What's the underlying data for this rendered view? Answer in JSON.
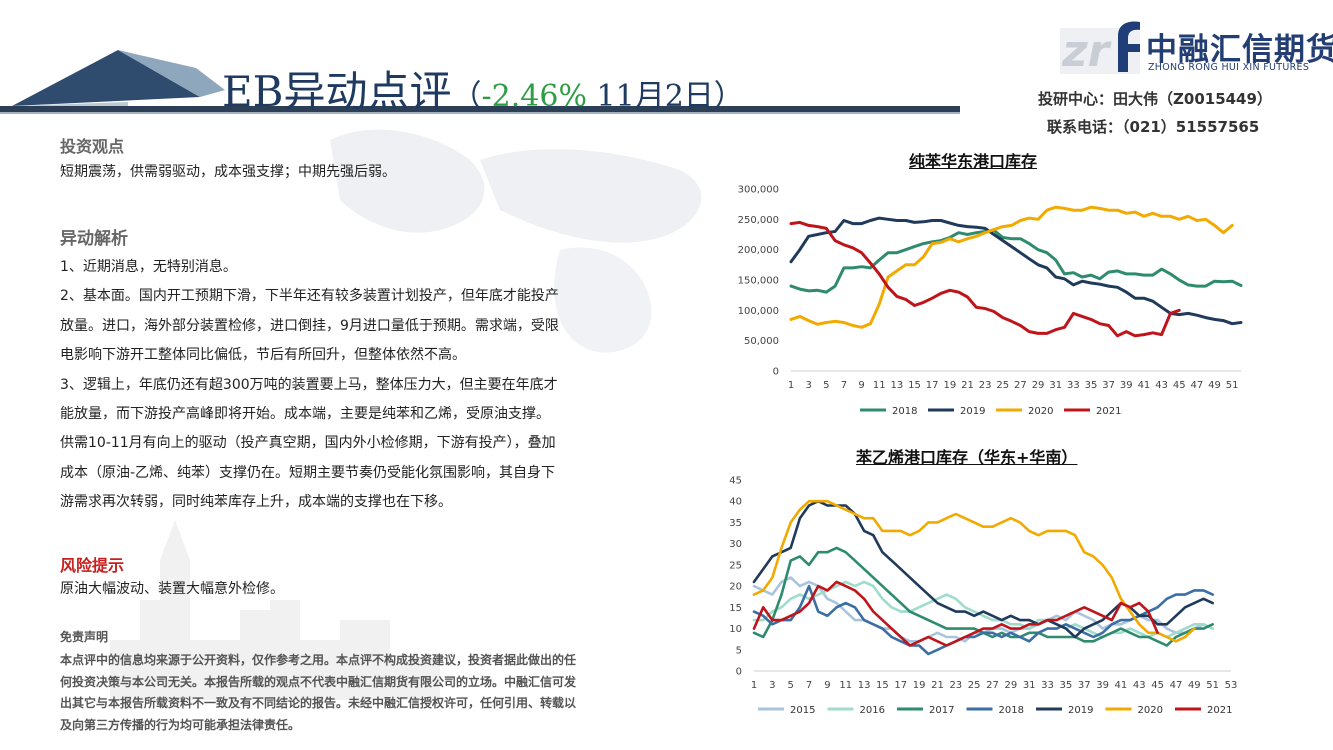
{
  "header": {
    "title_main": "EB异动点评",
    "title_paren_open": "（",
    "title_change": "-2.46%",
    "title_date": " 11月2日",
    "title_paren_close": "）",
    "logo_cn": "中融汇信期货",
    "logo_en": "ZHONG RONG HUI XIN FUTURES",
    "analyst": "投研中心：田大伟（Z0015449）",
    "phone": "联系电话：（021）51557565"
  },
  "sections": {
    "view_heading": "投资观点",
    "view_text": "短期震荡，供需弱驱动，成本强支撑；中期先强后弱。",
    "analysis_heading": "异动解析",
    "analysis_lines": [
      "1、近期消息，无特别消息。",
      "2、基本面。国内开工预期下滑，下半年还有较多装置计划投产，但年底才能投产",
      "放量。进口，海外部分装置检修，进口倒挂，9月进口量低于预期。需求端，受限",
      "电影响下游开工整体同比偏低，节后有所回升，但整体依然不高。",
      "3、逻辑上，年底仍还有超300万吨的装置要上马，整体压力大，但主要在年底才",
      "能放量，而下游投产高峰即将开始。成本端，主要是纯苯和乙烯，受原油支撑。",
      "供需10-11月有向上的驱动（投产真空期，国内外小检修期，下游有投产），叠加",
      "成本（原油-乙烯、纯苯）支撑仍在。短期主要节奏仍受能化氛围影响，其自身下",
      "游需求再次转弱，同时纯苯库存上升，成本端的支撑也在下移。"
    ],
    "risk_heading": "风险提示",
    "risk_text": "原油大幅波动、装置大幅意外检修。",
    "disclaimer_heading": "免责声明",
    "disclaimer_lines": [
      "本点评中的信息均来源于公开资料，仅作参考之用。本点评不构成投资建议，投资者据此做出的任",
      "何投资决策与本公司无关。本报告所载的观点不代表中融汇信期货有限公司的立场。中融汇信可发",
      "出其它与本报告所载资料不一致及有不同结论的报告。未经中融汇信授权许可，任何引用、转载以",
      "及向第三方传播的行为均可能承担法律责任。"
    ]
  },
  "chart_data": [
    {
      "type": "line",
      "title": "纯苯华东港口库存",
      "ylim": [
        0,
        300000
      ],
      "yticks": [
        0,
        50000,
        100000,
        150000,
        200000,
        250000,
        300000
      ],
      "ytick_labels": [
        "0",
        "50,000",
        "100,000",
        "150,000",
        "200,000",
        "250,000",
        "300,000"
      ],
      "xlim": [
        1,
        52
      ],
      "xticks": [
        1,
        3,
        5,
        7,
        9,
        11,
        13,
        15,
        17,
        19,
        21,
        23,
        25,
        27,
        29,
        31,
        33,
        35,
        37,
        39,
        41,
        43,
        45,
        47,
        49,
        51
      ],
      "legend_position": "bottom",
      "grid": false,
      "series": [
        {
          "name": "2018",
          "color": "#2e8b6e",
          "values": [
            140000,
            135000,
            132000,
            133000,
            130000,
            140000,
            170000,
            170000,
            172000,
            170000,
            183000,
            195000,
            195000,
            200000,
            205000,
            210000,
            213000,
            215000,
            220000,
            228000,
            225000,
            228000,
            230000,
            232000,
            220000,
            218000,
            218000,
            210000,
            200000,
            195000,
            183000,
            160000,
            162000,
            155000,
            158000,
            152000,
            163000,
            165000,
            160000,
            160000,
            158000,
            158000,
            168000,
            160000,
            150000,
            142000,
            140000,
            140000,
            148000,
            147000,
            148000,
            141000
          ]
        },
        {
          "name": "2019",
          "color": "#1f3a5a",
          "values": [
            180000,
            200000,
            222000,
            225000,
            228000,
            230000,
            248000,
            243000,
            243000,
            248000,
            252000,
            250000,
            248000,
            248000,
            245000,
            246000,
            248000,
            248000,
            244000,
            240000,
            238000,
            237000,
            235000,
            225000,
            215000,
            205000,
            195000,
            185000,
            175000,
            170000,
            155000,
            152000,
            142000,
            148000,
            145000,
            143000,
            140000,
            138000,
            130000,
            120000,
            120000,
            115000,
            105000,
            95000,
            93000,
            95000,
            92000,
            88000,
            85000,
            83000,
            78000,
            80000
          ]
        },
        {
          "name": "2020",
          "color": "#f2a900",
          "values": [
            85000,
            90000,
            83000,
            77000,
            80000,
            82000,
            80000,
            75000,
            72000,
            78000,
            110000,
            155000,
            165000,
            175000,
            175000,
            188000,
            210000,
            212000,
            218000,
            213000,
            218000,
            222000,
            228000,
            233000,
            238000,
            240000,
            248000,
            252000,
            250000,
            265000,
            270000,
            268000,
            265000,
            265000,
            270000,
            268000,
            265000,
            265000,
            260000,
            262000,
            255000,
            260000,
            255000,
            255000,
            250000,
            255000,
            248000,
            250000,
            240000,
            228000,
            240000,
            null
          ]
        },
        {
          "name": "2021",
          "color": "#c0141b",
          "values": [
            243000,
            245000,
            240000,
            238000,
            235000,
            215000,
            208000,
            203000,
            195000,
            178000,
            160000,
            138000,
            123000,
            118000,
            108000,
            113000,
            120000,
            128000,
            133000,
            130000,
            122000,
            105000,
            103000,
            98000,
            88000,
            82000,
            75000,
            65000,
            62000,
            62000,
            68000,
            72000,
            95000,
            90000,
            85000,
            78000,
            75000,
            58000,
            65000,
            58000,
            60000,
            63000,
            60000,
            95000,
            100000,
            null,
            null,
            null,
            null,
            null,
            null,
            null
          ]
        }
      ]
    },
    {
      "type": "line",
      "title": "苯乙烯港口库存（华东+华南）",
      "ylim": [
        0,
        45
      ],
      "yticks": [
        0,
        5,
        10,
        15,
        20,
        25,
        30,
        35,
        40,
        45
      ],
      "xlim": [
        1,
        53
      ],
      "xticks": [
        1,
        3,
        5,
        7,
        9,
        11,
        13,
        15,
        17,
        19,
        21,
        23,
        25,
        27,
        29,
        31,
        33,
        35,
        37,
        39,
        41,
        43,
        45,
        47,
        49,
        51,
        53
      ],
      "legend_position": "bottom",
      "grid": false,
      "series": [
        {
          "name": "2015",
          "color": "#a8c4de",
          "values": [
            20,
            19,
            18,
            21,
            22,
            20,
            21,
            20,
            17,
            16,
            14,
            12,
            12,
            11,
            10,
            10,
            8,
            7,
            7,
            8,
            9,
            8,
            8,
            7,
            9,
            9,
            10,
            10,
            9,
            10,
            10,
            11,
            12,
            13,
            12,
            14,
            13,
            12,
            10,
            11,
            11,
            12,
            13,
            12,
            12,
            10,
            9,
            9,
            10,
            11,
            10,
            null,
            null
          ]
        },
        {
          "name": "2016",
          "color": "#9fdccc",
          "values": [
            12,
            12,
            14,
            15,
            17,
            18,
            17,
            18,
            19,
            20,
            21,
            20,
            21,
            20,
            17,
            15,
            14,
            14,
            15,
            16,
            17,
            18,
            17,
            15,
            14,
            13,
            12,
            12,
            11,
            11,
            10,
            12,
            12,
            11,
            10,
            11,
            10,
            9,
            8,
            9,
            9,
            10,
            9,
            8,
            9,
            8,
            9,
            10,
            11,
            11,
            10,
            null,
            null
          ]
        },
        {
          "name": "2017",
          "color": "#2e8b6e",
          "values": [
            9,
            8,
            12,
            18,
            26,
            27,
            25,
            28,
            28,
            29,
            28,
            26,
            24,
            22,
            20,
            18,
            16,
            14,
            13,
            12,
            11,
            10,
            10,
            10,
            10,
            9,
            8,
            9,
            8,
            8,
            9,
            9,
            8,
            8,
            8,
            8,
            7,
            7,
            8,
            9,
            10,
            9,
            8,
            8,
            7,
            6,
            8,
            9,
            10,
            10,
            11,
            null,
            null
          ]
        },
        {
          "name": "2018",
          "color": "#3a6ea5",
          "values": [
            14,
            13,
            11,
            12,
            12,
            15,
            20,
            14,
            13,
            15,
            16,
            15,
            12,
            11,
            10,
            8,
            7,
            6,
            6,
            4,
            5,
            6,
            7,
            8,
            8,
            9,
            9,
            8,
            9,
            8,
            7,
            9,
            10,
            10,
            11,
            10,
            9,
            8,
            9,
            11,
            12,
            12,
            13,
            14,
            15,
            17,
            18,
            18,
            19,
            19,
            18,
            null,
            null
          ]
        },
        {
          "name": "2019",
          "color": "#1f3a5a",
          "values": [
            21,
            24,
            27,
            28,
            29,
            36,
            39,
            40,
            39,
            39,
            39,
            37,
            33,
            32,
            28,
            26,
            24,
            22,
            20,
            18,
            16,
            15,
            14,
            14,
            13,
            14,
            13,
            12,
            13,
            12,
            12,
            11,
            12,
            11,
            10,
            8,
            10,
            11,
            12,
            14,
            16,
            15,
            13,
            13,
            11,
            11,
            13,
            15,
            16,
            17,
            16,
            null,
            null
          ]
        },
        {
          "name": "2020",
          "color": "#f2a900",
          "values": [
            18,
            19,
            22,
            29,
            35,
            38,
            40,
            40,
            40,
            39,
            38,
            37,
            36,
            36,
            33,
            33,
            33,
            32,
            33,
            35,
            35,
            36,
            37,
            36,
            35,
            34,
            34,
            35,
            36,
            35,
            33,
            32,
            33,
            33,
            33,
            32,
            28,
            27,
            25,
            22,
            17,
            14,
            11,
            9,
            9,
            8,
            7,
            8,
            10,
            null,
            null,
            null,
            null
          ]
        },
        {
          "name": "2021",
          "color": "#c0141b",
          "values": [
            10,
            15,
            12,
            12,
            13,
            14,
            16,
            20,
            19,
            21,
            20,
            19,
            17,
            14,
            12,
            10,
            8,
            6,
            7,
            8,
            7,
            6,
            7,
            8,
            9,
            10,
            10,
            11,
            10,
            10,
            11,
            11,
            12,
            12,
            13,
            14,
            15,
            14,
            13,
            12,
            16,
            15,
            16,
            14,
            9,
            null,
            null,
            null,
            null,
            null,
            null,
            null,
            null
          ]
        }
      ]
    }
  ]
}
